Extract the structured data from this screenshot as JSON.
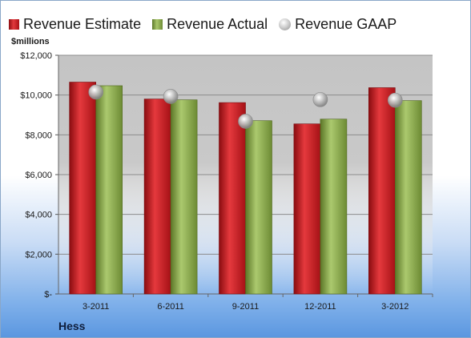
{
  "legend": {
    "estimate": "Revenue Estimate",
    "actual": "Revenue Actual",
    "gaap": "Revenue GAAP"
  },
  "unit_label": "$millions",
  "company": "Hess",
  "colors": {
    "estimate": "#c81e23",
    "actual": "#8fae52",
    "gaap": "#b8b8b8",
    "plot_background": "#c9c9c9"
  },
  "chart_data": {
    "type": "bar",
    "categories": [
      "3-2011",
      "6-2011",
      "9-2011",
      "12-2011",
      "3-2012"
    ],
    "series": [
      {
        "name": "Revenue Estimate",
        "values": [
          10650,
          9800,
          9620,
          8550,
          10370
        ]
      },
      {
        "name": "Revenue Actual",
        "values": [
          10470,
          9760,
          8710,
          8790,
          9720
        ]
      },
      {
        "name": "Revenue GAAP",
        "type": "scatter",
        "values": [
          10150,
          9930,
          8680,
          9770,
          9740
        ]
      }
    ],
    "yticks": [
      "$-",
      "$2,000",
      "$4,000",
      "$6,000",
      "$8,000",
      "$10,000",
      "$12,000"
    ],
    "ylim": [
      0,
      12000
    ],
    "ylabel": "$millions",
    "grid": true,
    "legend_position": "top"
  }
}
